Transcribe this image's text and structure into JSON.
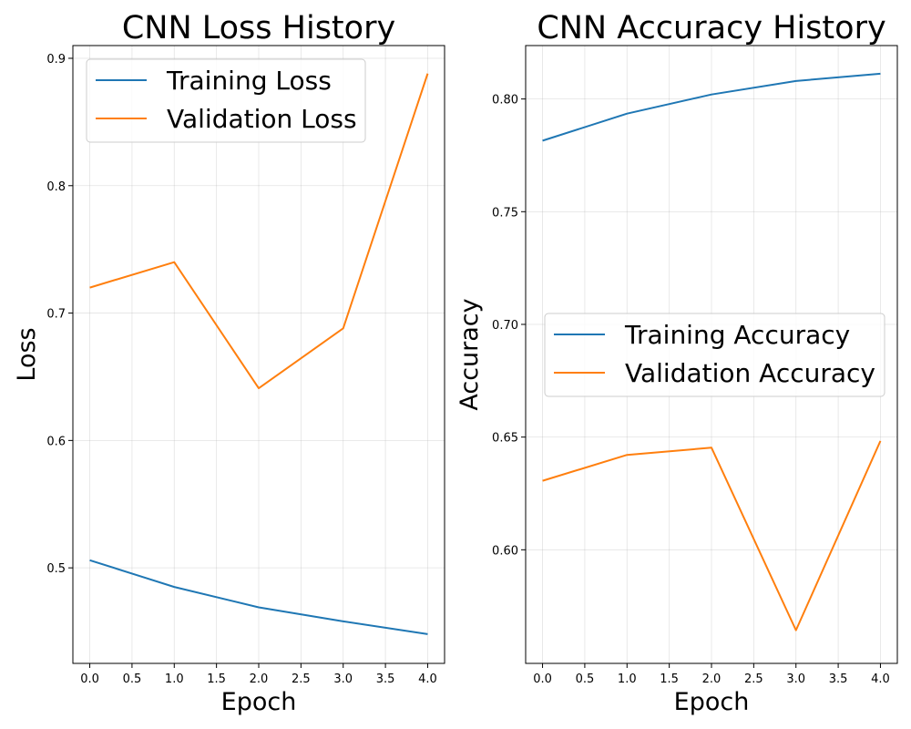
{
  "chart_data": [
    {
      "type": "line",
      "title": "CNN Loss History",
      "xlabel": "Epoch",
      "ylabel": "Loss",
      "xlim": [
        -0.2,
        4.2
      ],
      "ylim": [
        0.425,
        0.91
      ],
      "xticks": [
        0.0,
        0.5,
        1.0,
        1.5,
        2.0,
        2.5,
        3.0,
        3.5,
        4.0
      ],
      "xtick_labels": [
        "0.0",
        "0.5",
        "1.0",
        "1.5",
        "2.0",
        "2.5",
        "3.0",
        "3.5",
        "4.0"
      ],
      "yticks": [
        0.5,
        0.6,
        0.7,
        0.8,
        0.9
      ],
      "ytick_labels": [
        "0.5",
        "0.6",
        "0.7",
        "0.8",
        "0.9"
      ],
      "grid": true,
      "legend_position": "upper-left",
      "x": [
        0,
        1,
        2,
        3,
        4
      ],
      "series": [
        {
          "name": "Training Loss",
          "color": "#1f77b4",
          "values": [
            0.506,
            0.485,
            0.469,
            0.458,
            0.448
          ]
        },
        {
          "name": "Validation Loss",
          "color": "#ff7f0e",
          "values": [
            0.72,
            0.74,
            0.641,
            0.688,
            0.888
          ]
        }
      ]
    },
    {
      "type": "line",
      "title": "CNN Accuracy History",
      "xlabel": "Epoch",
      "ylabel": "Accuracy",
      "xlim": [
        -0.2,
        4.2
      ],
      "ylim": [
        0.5496,
        0.8237
      ],
      "xticks": [
        0.0,
        0.5,
        1.0,
        1.5,
        2.0,
        2.5,
        3.0,
        3.5,
        4.0
      ],
      "xtick_labels": [
        "0.0",
        "0.5",
        "1.0",
        "1.5",
        "2.0",
        "2.5",
        "3.0",
        "3.5",
        "4.0"
      ],
      "yticks": [
        0.6,
        0.65,
        0.7,
        0.75,
        0.8
      ],
      "ytick_labels": [
        "0.60",
        "0.65",
        "0.70",
        "0.75",
        "0.80"
      ],
      "grid": true,
      "legend_position": "center-right",
      "x": [
        0,
        1,
        2,
        3,
        4
      ],
      "series": [
        {
          "name": "Training Accuracy",
          "color": "#1f77b4",
          "values": [
            0.7815,
            0.7935,
            0.802,
            0.808,
            0.8112
          ]
        },
        {
          "name": "Validation Accuracy",
          "color": "#ff7f0e",
          "values": [
            0.6306,
            0.6421,
            0.6453,
            0.5643,
            0.6483
          ]
        }
      ]
    }
  ]
}
